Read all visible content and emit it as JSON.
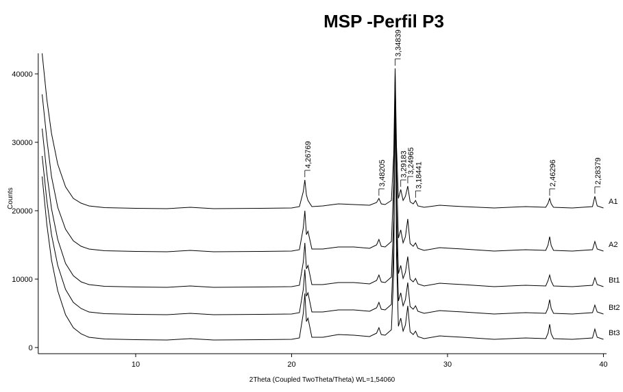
{
  "chart_data": {
    "type": "line",
    "title": "MSP -Perfil P3",
    "x_label": "2Theta (Coupled TwoTheta/Theta) WL=1,54060",
    "y_label": "Counts",
    "xlim": [
      3.75,
      40.2
    ],
    "ylim": [
      -900,
      43000
    ],
    "xticks": [
      10,
      20,
      30,
      40
    ],
    "yticks": [
      0,
      10000,
      20000,
      30000,
      40000
    ],
    "x": [
      4,
      4.3,
      4.6,
      5,
      5.5,
      6,
      6.5,
      7,
      8,
      10,
      12,
      13.5,
      15,
      18,
      20,
      20.5,
      20.75,
      20.85,
      20.95,
      21.05,
      21.3,
      22,
      23,
      24,
      25,
      25.45,
      25.6,
      25.75,
      26,
      26.4,
      26.55,
      26.64,
      26.73,
      26.85,
      27.0,
      27.15,
      27.3,
      27.45,
      27.6,
      27.8,
      27.95,
      28.1,
      28.5,
      29.5,
      30.2,
      31,
      33,
      35,
      36.3,
      36.45,
      36.55,
      36.65,
      36.8,
      38,
      39.3,
      39.45,
      39.6,
      40
    ],
    "series": [
      {
        "name": "A1",
        "color": "#000000",
        "values": [
          43000,
          36300,
          31300,
          26800,
          23500,
          21800,
          21100,
          20700,
          20450,
          20350,
          20300,
          20500,
          20300,
          20350,
          20400,
          20600,
          22800,
          24500,
          22300,
          21500,
          20600,
          20700,
          21000,
          20900,
          20800,
          21200,
          21800,
          21000,
          20900,
          21500,
          28300,
          40800,
          29300,
          21800,
          23100,
          21500,
          22100,
          23600,
          21300,
          21000,
          21500,
          20700,
          20500,
          20800,
          20700,
          20600,
          20400,
          20600,
          20500,
          21100,
          21800,
          21000,
          20500,
          20400,
          20600,
          22100,
          20700,
          20400
        ]
      },
      {
        "name": "A2",
        "color": "#000000",
        "values": [
          37000,
          30500,
          25000,
          20500,
          17300,
          15600,
          14800,
          14400,
          14150,
          14050,
          14000,
          14200,
          14000,
          14050,
          14100,
          14300,
          17500,
          20000,
          16500,
          17000,
          14400,
          14400,
          14700,
          14700,
          14500,
          15000,
          15800,
          14800,
          14700,
          15500,
          24000,
          40000,
          26000,
          16000,
          17200,
          15300,
          16200,
          18800,
          15200,
          14800,
          15300,
          14500,
          14200,
          14600,
          14500,
          14400,
          14100,
          14300,
          14200,
          15000,
          16200,
          14900,
          14200,
          14100,
          14300,
          15500,
          14400,
          14100
        ]
      },
      {
        "name": "Bt1",
        "color": "#000000",
        "values": [
          32000,
          25500,
          20300,
          15800,
          12300,
          10500,
          9600,
          9200,
          8950,
          8850,
          8800,
          9000,
          8800,
          8850,
          8900,
          9100,
          12500,
          15300,
          11500,
          12000,
          9200,
          9200,
          9500,
          9500,
          9300,
          9800,
          10600,
          9600,
          9500,
          10300,
          19000,
          39000,
          21000,
          10800,
          12000,
          10100,
          11000,
          13300,
          10000,
          9600,
          10100,
          9300,
          9000,
          9400,
          9300,
          9200,
          8900,
          9100,
          9000,
          9800,
          10600,
          9700,
          9000,
          8900,
          9100,
          10200,
          9200,
          8900
        ]
      },
      {
        "name": "Bt2",
        "color": "#000000",
        "values": [
          28000,
          21500,
          16500,
          12000,
          8500,
          6600,
          5700,
          5200,
          4950,
          4850,
          4800,
          5000,
          4800,
          4850,
          4900,
          5100,
          8500,
          11400,
          7500,
          8000,
          5200,
          5200,
          5500,
          5500,
          5300,
          5800,
          6600,
          5600,
          5500,
          6300,
          15000,
          37800,
          17000,
          6800,
          8000,
          6100,
          7000,
          9500,
          6000,
          5600,
          6100,
          5300,
          5000,
          5400,
          5300,
          5200,
          4900,
          5100,
          5000,
          5800,
          7000,
          5700,
          5000,
          4900,
          5100,
          6200,
          5200,
          4900
        ]
      },
      {
        "name": "Bt3",
        "color": "#000000",
        "values": [
          25000,
          18000,
          12800,
          8300,
          4800,
          2900,
          2000,
          1500,
          1250,
          1150,
          1100,
          1300,
          1100,
          1150,
          1200,
          1400,
          5000,
          7900,
          3800,
          4300,
          1500,
          1500,
          1900,
          1800,
          1600,
          2100,
          2900,
          1900,
          1800,
          2600,
          11000,
          38100,
          13000,
          3100,
          4300,
          2400,
          3300,
          6100,
          2300,
          1900,
          2400,
          1600,
          1300,
          1700,
          1600,
          1500,
          1200,
          1400,
          1300,
          2100,
          3400,
          2000,
          1300,
          1200,
          1400,
          2700,
          1500,
          1200
        ]
      }
    ],
    "annotations": [
      {
        "text": "4,26769",
        "x": 20.85
      },
      {
        "text": "3,48205",
        "x": 25.6
      },
      {
        "text": "3,34839",
        "x": 26.64
      },
      {
        "text": "3,29183",
        "x": 27.0
      },
      {
        "text": "3,24965",
        "x": 27.45
      },
      {
        "text": "3,18441",
        "x": 27.95
      },
      {
        "text": "2,46296",
        "x": 36.55
      },
      {
        "text": "2,28379",
        "x": 39.45
      }
    ]
  }
}
